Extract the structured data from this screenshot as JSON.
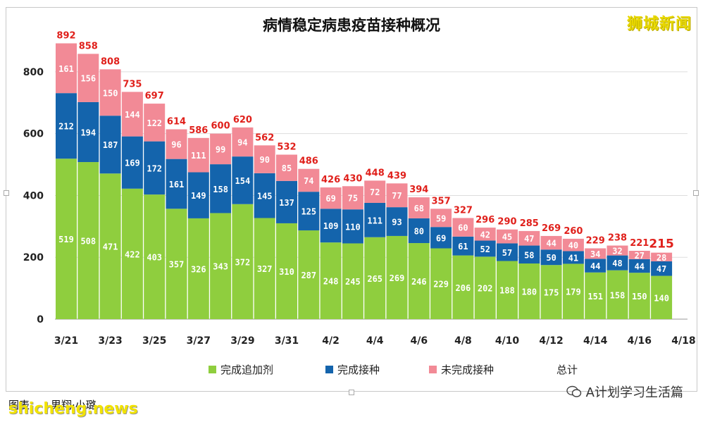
{
  "brand": "狮城新闻",
  "footer": {
    "credit": "图表　　男翔·小璐",
    "watermark": "shicheng.news",
    "wechat_account": "A计划学习生活篇"
  },
  "colors": {
    "booster": "#8fce3e",
    "completed": "#1464ac",
    "incomplete": "#f28a96",
    "total_label": "#e0201b"
  },
  "chart_data": {
    "type": "bar",
    "stacked": true,
    "title": "病情稳定病患疫苗接种概况",
    "categories": [
      "3/21",
      "3/22",
      "3/23",
      "3/24",
      "3/25",
      "3/26",
      "3/27",
      "3/28",
      "3/29",
      "3/30",
      "3/31",
      "4/1",
      "4/2",
      "4/3",
      "4/4",
      "4/5",
      "4/6",
      "4/7",
      "4/8",
      "4/9",
      "4/10",
      "4/11",
      "4/12",
      "4/13",
      "4/14",
      "4/15",
      "4/16",
      "4/17"
    ],
    "x_tick_labels": [
      "3/21",
      "3/23",
      "3/25",
      "3/27",
      "3/29",
      "3/31",
      "4/2",
      "4/4",
      "4/6",
      "4/8",
      "4/10",
      "4/12",
      "4/14",
      "4/16",
      "4/18"
    ],
    "series": [
      {
        "name": "完成追加剂",
        "values": [
          519,
          508,
          471,
          422,
          403,
          357,
          326,
          343,
          372,
          327,
          310,
          287,
          248,
          245,
          265,
          269,
          246,
          229,
          206,
          202,
          188,
          180,
          175,
          179,
          151,
          158,
          150,
          140
        ]
      },
      {
        "name": "完成接种",
        "values": [
          212,
          194,
          187,
          169,
          172,
          161,
          149,
          158,
          154,
          145,
          137,
          125,
          109,
          110,
          111,
          93,
          80,
          69,
          61,
          52,
          57,
          58,
          50,
          41,
          44,
          48,
          44,
          47
        ]
      },
      {
        "name": "未完成接种",
        "values": [
          161,
          156,
          150,
          144,
          122,
          96,
          111,
          99,
          94,
          90,
          85,
          74,
          69,
          75,
          72,
          77,
          68,
          59,
          60,
          42,
          45,
          47,
          44,
          40,
          34,
          32,
          27,
          28
        ]
      }
    ],
    "totals_name": "总计",
    "totals": [
      892,
      858,
      808,
      735,
      697,
      614,
      586,
      600,
      620,
      562,
      532,
      486,
      426,
      430,
      448,
      439,
      394,
      357,
      327,
      296,
      290,
      285,
      269,
      260,
      229,
      238,
      221,
      215
    ],
    "ylim": [
      0,
      900
    ],
    "y_ticks": [
      0,
      200,
      400,
      600,
      800
    ],
    "grid": true,
    "legend_position": "bottom"
  }
}
